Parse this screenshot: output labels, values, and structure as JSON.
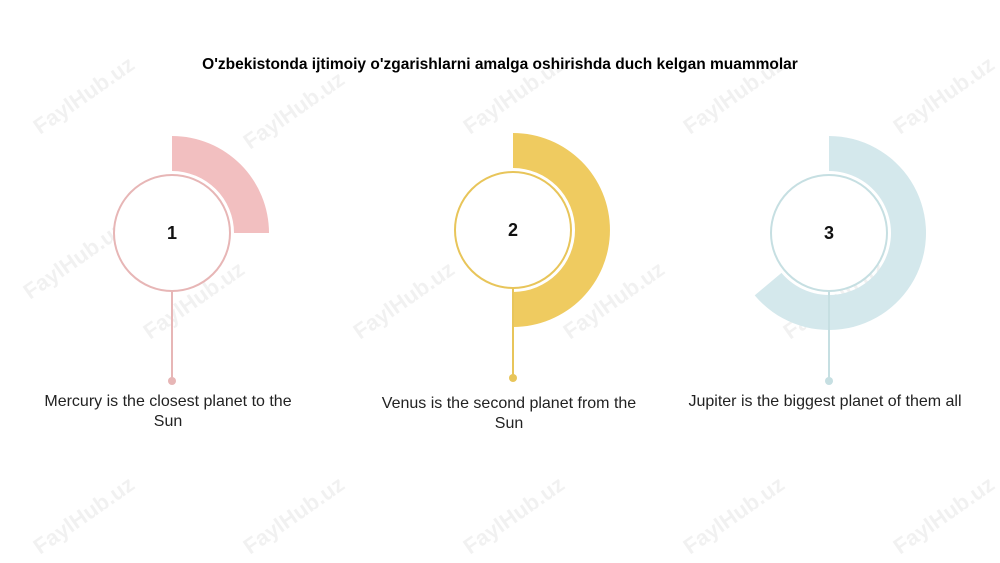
{
  "title": "O'zbekistonda ijtimoiy o'zgarishlarni amalga oshirishda duch kelgan muammolar",
  "watermark": "FaylHub.uz",
  "items": [
    {
      "number": "1",
      "text": "Mercury is the closest planet to the Sun"
    },
    {
      "number": "2",
      "text": "Venus is the second planet from the Sun"
    },
    {
      "number": "3",
      "text": "Jupiter is the biggest planet of them all"
    }
  ]
}
